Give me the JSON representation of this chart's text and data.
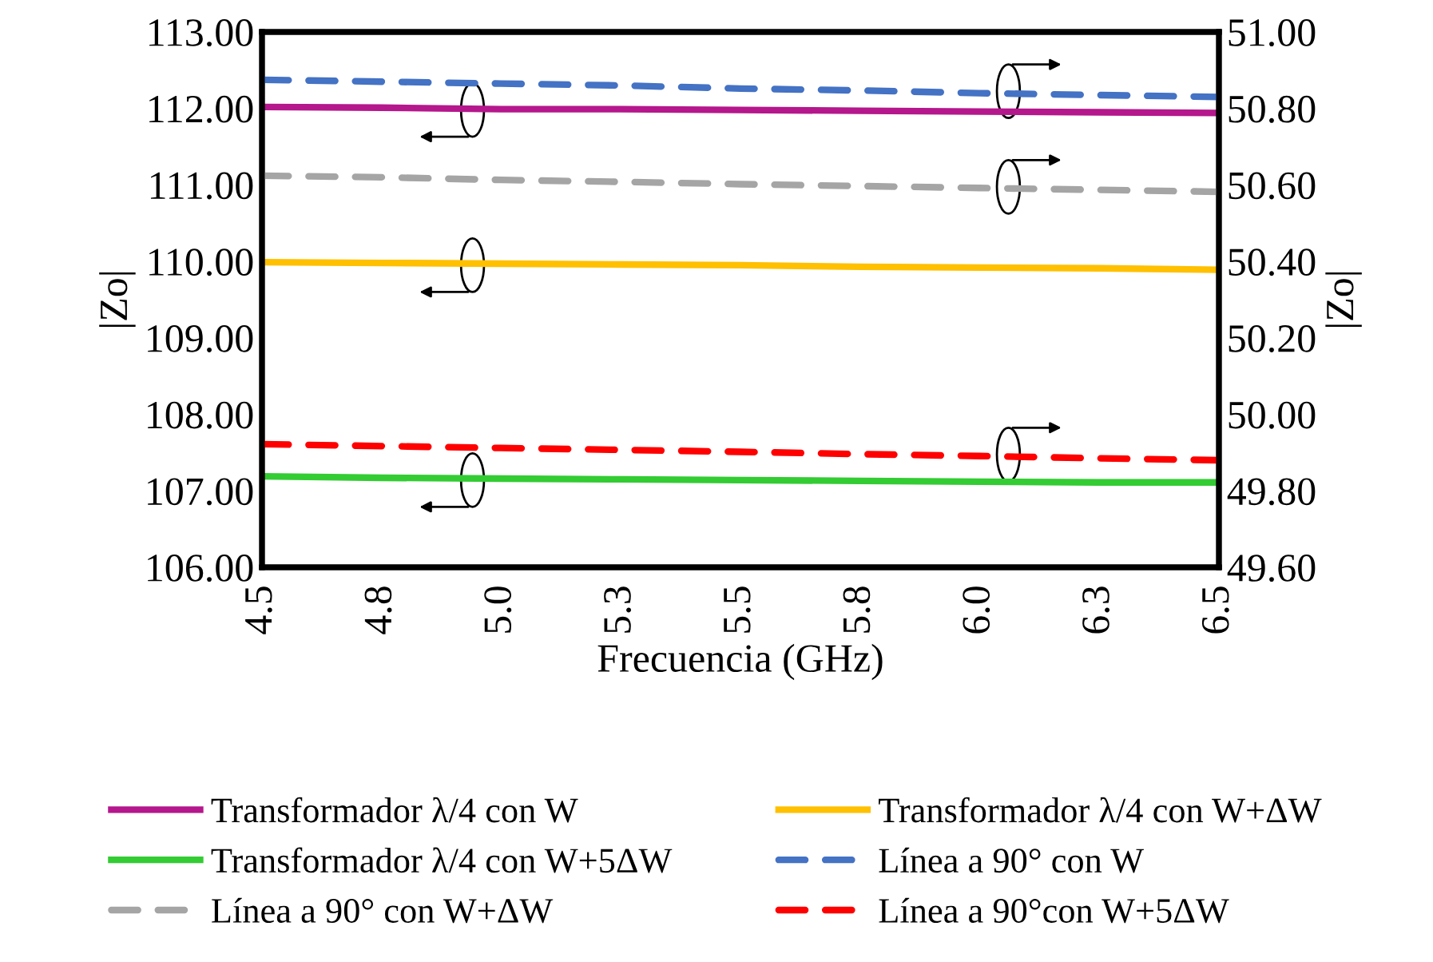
{
  "chart_data": {
    "type": "line",
    "xlabel": "Frecuencia (GHz)",
    "ylabel": "|Zo|",
    "y2label": "|Zo|",
    "x": [
      4.5,
      4.75,
      5.0,
      5.25,
      5.5,
      5.75,
      6.0,
      6.25,
      6.5
    ],
    "xlim": [
      4.5,
      6.5
    ],
    "xticks": [
      4.5,
      {
        "value": 4.75,
        "label": "4.8"
      },
      {
        "value": 5.0,
        "label": "5.0"
      },
      {
        "value": 5.25,
        "label": "5.3"
      },
      5.5,
      {
        "value": 5.75,
        "label": "5.8"
      },
      {
        "value": 6.0,
        "label": "6.0"
      },
      {
        "value": 6.25,
        "label": "6.3"
      },
      6.5
    ],
    "ylim": [
      106,
      113
    ],
    "yticks": [
      {
        "value": 106,
        "label": "106.00"
      },
      {
        "value": 107,
        "label": "107.00"
      },
      {
        "value": 108,
        "label": "108.00"
      },
      {
        "value": 109,
        "label": "109.00"
      },
      {
        "value": 110,
        "label": "110.00"
      },
      {
        "value": 111,
        "label": "111.00"
      },
      {
        "value": 112,
        "label": "112.00"
      },
      {
        "value": 113,
        "label": "113.00"
      }
    ],
    "y2lim": [
      49.6,
      51.0
    ],
    "y2ticks": [
      {
        "value": 49.6,
        "label": "49.60"
      },
      {
        "value": 49.8,
        "label": "49.80"
      },
      {
        "value": 50.0,
        "label": "50.00"
      },
      {
        "value": 50.2,
        "label": "50.20"
      },
      {
        "value": 50.4,
        "label": "50.40"
      },
      {
        "value": 50.6,
        "label": "50.60"
      },
      {
        "value": 50.8,
        "label": "50.80"
      },
      {
        "value": 51.0,
        "label": "51.00"
      }
    ],
    "grid": false,
    "legend": "bottom",
    "series": [
      {
        "name": "Transformador λ/4 con W",
        "color": "#b5178c",
        "line_style": "solid",
        "values": [
          112.02,
          112.01,
          111.99,
          111.99,
          111.98,
          111.97,
          111.96,
          111.95,
          111.94
        ]
      },
      {
        "name": "Transformador λ/4 con W+ΔW",
        "color": "#ffc000",
        "line_style": "solid",
        "values": [
          109.99,
          109.98,
          109.97,
          109.96,
          109.95,
          109.93,
          109.92,
          109.91,
          109.89
        ]
      },
      {
        "name": "Transformador λ/4 con W+5ΔW",
        "color": "#33cc33",
        "line_style": "solid",
        "values": [
          107.19,
          107.17,
          107.16,
          107.15,
          107.14,
          107.13,
          107.12,
          107.11,
          107.11
        ]
      },
      {
        "name": "Línea a 90° con W",
        "color": "#4472c4",
        "line_style": "dashed",
        "axis": "y2",
        "values": [
          50.875,
          50.87,
          50.865,
          50.86,
          50.852,
          50.847,
          50.84,
          50.835,
          50.83
        ]
      },
      {
        "name": "Línea a 90° con W+ΔW",
        "color": "#a5a5a5",
        "line_style": "dashed",
        "axis": "y2",
        "values": [
          50.624,
          50.62,
          50.613,
          50.608,
          50.602,
          50.597,
          50.592,
          50.587,
          50.582
        ]
      },
      {
        "name": "Línea a 90°con W+5ΔW",
        "color": "#ff0000",
        "line_style": "dashed",
        "axis": "y2",
        "values": [
          49.922,
          49.917,
          49.912,
          49.907,
          49.902,
          49.896,
          49.891,
          49.885,
          49.88
        ]
      }
    ]
  }
}
